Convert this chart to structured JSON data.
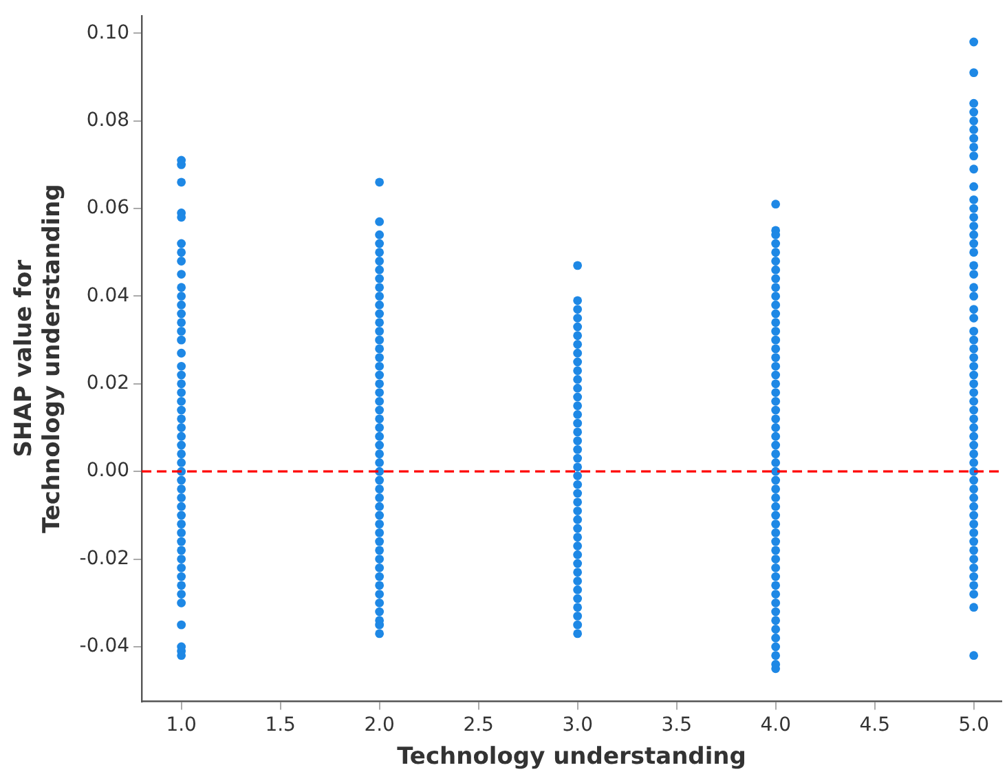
{
  "chart_data": {
    "type": "scatter",
    "xlabel": "Technology understanding",
    "ylabel": "SHAP value for\nTechnology understanding",
    "xlim": [
      0.8,
      5.14
    ],
    "ylim": [
      -0.0525,
      0.104
    ],
    "xticks": [
      {
        "value": 1,
        "label": "1.0"
      },
      {
        "value": 1.5,
        "label": "1.5"
      },
      {
        "value": 2,
        "label": "2.0"
      },
      {
        "value": 2.5,
        "label": "2.5"
      },
      {
        "value": 3,
        "label": "3.0"
      },
      {
        "value": 3.5,
        "label": "3.5"
      },
      {
        "value": 4,
        "label": "4.0"
      },
      {
        "value": 4.5,
        "label": "4.5"
      },
      {
        "value": 5,
        "label": "5.0"
      }
    ],
    "yticks": [
      {
        "value": -0.04,
        "label": "-0.04"
      },
      {
        "value": -0.02,
        "label": "-0.02"
      },
      {
        "value": 0,
        "label": "0.00"
      },
      {
        "value": 0.02,
        "label": "0.02"
      },
      {
        "value": 0.04,
        "label": "0.04"
      },
      {
        "value": 0.06,
        "label": "0.06"
      },
      {
        "value": 0.08,
        "label": "0.08"
      },
      {
        "value": 0.1,
        "label": "0.10"
      }
    ],
    "grid": false,
    "legend": false,
    "marker": "circle",
    "ref_lines": [
      {
        "axis": "y",
        "value": 0,
        "color": "#ff0000",
        "line_style": "dashed"
      }
    ],
    "series": [
      {
        "color": "#1e88e5",
        "x": [
          1,
          1,
          1,
          1,
          1,
          1,
          1,
          1,
          1,
          1,
          1,
          1,
          1,
          1,
          1,
          1,
          1,
          1,
          1,
          1,
          1,
          1,
          1,
          1,
          1,
          1,
          1,
          1,
          1,
          1,
          1,
          1,
          1,
          1,
          1,
          1,
          1,
          1,
          1,
          1,
          1,
          1,
          1,
          1,
          1,
          1,
          1,
          1,
          1
        ],
        "values": [
          0.071,
          0.07,
          0.066,
          0.059,
          0.058,
          0.052,
          0.05,
          0.048,
          0.045,
          0.042,
          0.04,
          0.038,
          0.036,
          0.034,
          0.032,
          0.03,
          0.027,
          0.024,
          0.022,
          0.02,
          0.018,
          0.016,
          0.014,
          0.012,
          0.01,
          0.008,
          0.006,
          0.004,
          0.002,
          0.0,
          -0.002,
          -0.004,
          -0.006,
          -0.008,
          -0.01,
          -0.012,
          -0.014,
          -0.016,
          -0.018,
          -0.02,
          -0.022,
          -0.024,
          -0.026,
          -0.028,
          -0.03,
          -0.035,
          -0.04,
          -0.041,
          -0.042
        ]
      },
      {
        "color": "#1e88e5",
        "x": [
          2,
          2,
          2,
          2,
          2,
          2,
          2,
          2,
          2,
          2,
          2,
          2,
          2,
          2,
          2,
          2,
          2,
          2,
          2,
          2,
          2,
          2,
          2,
          2,
          2,
          2,
          2,
          2,
          2,
          2,
          2,
          2,
          2,
          2,
          2,
          2,
          2,
          2,
          2,
          2,
          2,
          2,
          2,
          2,
          2,
          2,
          2,
          2,
          2
        ],
        "values": [
          0.066,
          0.057,
          0.054,
          0.052,
          0.05,
          0.048,
          0.046,
          0.044,
          0.042,
          0.04,
          0.038,
          0.036,
          0.034,
          0.032,
          0.03,
          0.028,
          0.026,
          0.024,
          0.022,
          0.02,
          0.018,
          0.016,
          0.014,
          0.012,
          0.01,
          0.008,
          0.006,
          0.004,
          0.002,
          0.0,
          -0.002,
          -0.004,
          -0.006,
          -0.008,
          -0.01,
          -0.012,
          -0.014,
          -0.016,
          -0.018,
          -0.02,
          -0.022,
          -0.024,
          -0.026,
          -0.028,
          -0.03,
          -0.032,
          -0.034,
          -0.035,
          -0.037
        ]
      },
      {
        "color": "#1e88e5",
        "x": [
          3,
          3,
          3,
          3,
          3,
          3,
          3,
          3,
          3,
          3,
          3,
          3,
          3,
          3,
          3,
          3,
          3,
          3,
          3,
          3,
          3,
          3,
          3,
          3,
          3,
          3,
          3,
          3,
          3,
          3,
          3,
          3,
          3,
          3,
          3,
          3,
          3,
          3,
          3,
          3
        ],
        "values": [
          0.047,
          0.039,
          0.037,
          0.035,
          0.033,
          0.031,
          0.029,
          0.027,
          0.025,
          0.023,
          0.021,
          0.019,
          0.017,
          0.015,
          0.013,
          0.011,
          0.009,
          0.007,
          0.005,
          0.003,
          0.001,
          -0.001,
          -0.003,
          -0.005,
          -0.007,
          -0.009,
          -0.011,
          -0.013,
          -0.015,
          -0.017,
          -0.019,
          -0.021,
          -0.023,
          -0.025,
          -0.027,
          -0.029,
          -0.031,
          -0.033,
          -0.035,
          -0.037
        ]
      },
      {
        "color": "#1e88e5",
        "x": [
          4,
          4,
          4,
          4,
          4,
          4,
          4,
          4,
          4,
          4,
          4,
          4,
          4,
          4,
          4,
          4,
          4,
          4,
          4,
          4,
          4,
          4,
          4,
          4,
          4,
          4,
          4,
          4,
          4,
          4,
          4,
          4,
          4,
          4,
          4,
          4,
          4,
          4,
          4,
          4,
          4,
          4,
          4,
          4,
          4,
          4,
          4,
          4,
          4,
          4,
          4,
          4,
          4
        ],
        "values": [
          0.061,
          0.055,
          0.054,
          0.052,
          0.05,
          0.048,
          0.046,
          0.044,
          0.042,
          0.04,
          0.038,
          0.036,
          0.034,
          0.032,
          0.03,
          0.028,
          0.026,
          0.024,
          0.022,
          0.02,
          0.018,
          0.016,
          0.014,
          0.012,
          0.01,
          0.008,
          0.006,
          0.004,
          0.002,
          0.0,
          -0.002,
          -0.004,
          -0.006,
          -0.008,
          -0.01,
          -0.012,
          -0.014,
          -0.016,
          -0.018,
          -0.02,
          -0.022,
          -0.024,
          -0.026,
          -0.028,
          -0.03,
          -0.032,
          -0.034,
          -0.036,
          -0.038,
          -0.04,
          -0.042,
          -0.044,
          -0.045
        ]
      },
      {
        "color": "#1e88e5",
        "x": [
          5,
          5,
          5,
          5,
          5,
          5,
          5,
          5,
          5,
          5,
          5,
          5,
          5,
          5,
          5,
          5,
          5,
          5,
          5,
          5,
          5,
          5,
          5,
          5,
          5,
          5,
          5,
          5,
          5,
          5,
          5,
          5,
          5,
          5,
          5,
          5,
          5,
          5,
          5,
          5,
          5,
          5,
          5,
          5,
          5,
          5,
          5,
          5,
          5,
          5,
          5,
          5,
          5,
          5,
          5,
          5,
          5
        ],
        "values": [
          0.098,
          0.091,
          0.084,
          0.082,
          0.08,
          0.078,
          0.076,
          0.074,
          0.072,
          0.069,
          0.065,
          0.062,
          0.06,
          0.058,
          0.056,
          0.054,
          0.052,
          0.05,
          0.047,
          0.045,
          0.042,
          0.04,
          0.037,
          0.035,
          0.032,
          0.03,
          0.028,
          0.026,
          0.024,
          0.022,
          0.02,
          0.018,
          0.016,
          0.014,
          0.012,
          0.01,
          0.008,
          0.006,
          0.004,
          0.002,
          0.0,
          -0.002,
          -0.004,
          -0.006,
          -0.008,
          -0.01,
          -0.012,
          -0.014,
          -0.016,
          -0.018,
          -0.02,
          -0.022,
          -0.024,
          -0.026,
          -0.028,
          -0.031,
          -0.042
        ]
      }
    ]
  }
}
